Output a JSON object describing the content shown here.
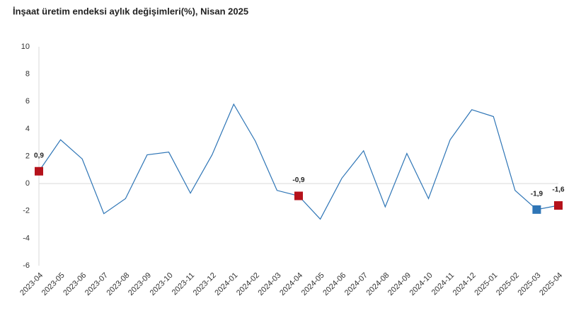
{
  "chart_data": {
    "type": "line",
    "title": "İnşaat üretim endeksi aylık değişimleri(%), Nisan 2025",
    "categories": [
      "2023-04",
      "2023-05",
      "2023-06",
      "2023-07",
      "2023-08",
      "2023-09",
      "2023-10",
      "2023-11",
      "2023-12",
      "2024-01",
      "2024-02",
      "2024-03",
      "2024-04",
      "2024-05",
      "2024-06",
      "2024-07",
      "2024-08",
      "2024-09",
      "2024-10",
      "2024-11",
      "2024-12",
      "2025-01",
      "2025-02",
      "2025-03",
      "2025-04"
    ],
    "values": [
      0.9,
      3.2,
      1.8,
      -2.2,
      -1.1,
      2.1,
      2.3,
      -0.7,
      2.1,
      5.8,
      3.1,
      -0.5,
      -0.9,
      -2.6,
      0.4,
      2.4,
      -1.7,
      2.2,
      -1.1,
      3.2,
      5.4,
      4.9,
      -0.5,
      -1.9,
      -1.6
    ],
    "value_labels": [
      "0,9",
      null,
      null,
      null,
      null,
      null,
      null,
      null,
      null,
      null,
      null,
      null,
      "-0,9",
      null,
      null,
      null,
      null,
      null,
      null,
      null,
      null,
      null,
      null,
      "-1,9",
      "-1,6"
    ],
    "marker_colors": [
      "#b5121b",
      null,
      null,
      null,
      null,
      null,
      null,
      null,
      null,
      null,
      null,
      null,
      "#b5121b",
      null,
      null,
      null,
      null,
      null,
      null,
      null,
      null,
      null,
      null,
      "#2e75b6",
      "#b5121b"
    ],
    "color": "#2e75b6",
    "ylim": [
      -6,
      10
    ],
    "yticks": [
      -6,
      -4,
      -2,
      0,
      2,
      4,
      6,
      8,
      10
    ]
  }
}
